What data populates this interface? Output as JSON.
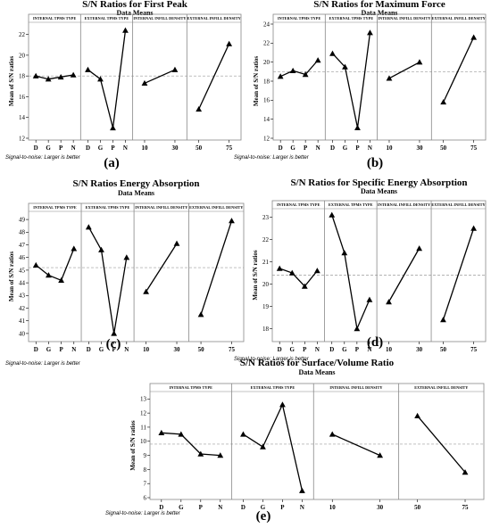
{
  "chart_data": [
    {
      "type": "line",
      "title": "S/N Ratios for First Peak",
      "subtitle": "Data Means",
      "ylabel": "Mean of S/N ratios",
      "ylim": [
        12,
        23
      ],
      "yticks": [
        12,
        14,
        16,
        18,
        20,
        22
      ],
      "reference_line": 18,
      "footnote": "Signal-to-noise: Larger is better",
      "caption": "(a)",
      "panels": [
        {
          "header": "INTERNAL TPMS TYPE",
          "categories": [
            "D",
            "G",
            "P",
            "N"
          ],
          "values": [
            18.0,
            17.7,
            17.9,
            18.1
          ]
        },
        {
          "header": "EXTERNAL TPMS TYPE",
          "categories": [
            "D",
            "G",
            "P",
            "N"
          ],
          "values": [
            18.6,
            17.7,
            13.0,
            22.4
          ]
        },
        {
          "header": "INTERNAL INFILL DENSITY",
          "categories": [
            "10",
            "30"
          ],
          "values": [
            17.3,
            18.6
          ]
        },
        {
          "header": "EXTERNAL INFILL DENSITY",
          "categories": [
            "50",
            "75"
          ],
          "values": [
            14.8,
            21.1
          ]
        }
      ]
    },
    {
      "type": "line",
      "title": "S/N Ratios for Maximum Force",
      "subtitle": "Data Means",
      "ylabel": "Mean of S/N ratios",
      "ylim": [
        12,
        24
      ],
      "yticks": [
        12,
        14,
        16,
        18,
        20,
        22,
        24
      ],
      "reference_line": 19,
      "footnote": "Signal-to-noise: Larger is better",
      "caption": "(b)",
      "panels": [
        {
          "header": "INTERNAL TPMS TYPE",
          "categories": [
            "D",
            "G",
            "P",
            "N"
          ],
          "values": [
            18.5,
            19.1,
            18.7,
            20.2
          ]
        },
        {
          "header": "EXTERNAL TPMS TYPE",
          "categories": [
            "D",
            "G",
            "P",
            "N"
          ],
          "values": [
            20.9,
            19.5,
            13.1,
            23.1
          ]
        },
        {
          "header": "INTERNAL INFILL DENSITY",
          "categories": [
            "10",
            "30"
          ],
          "values": [
            18.3,
            20.0
          ]
        },
        {
          "header": "EXTERNAL INFILL DENSITY",
          "categories": [
            "50",
            "75"
          ],
          "values": [
            15.8,
            22.6
          ]
        }
      ]
    },
    {
      "type": "line",
      "title": "S/N Ratios Energy Absorption",
      "subtitle": "Data Means",
      "ylabel": "Mean of S/N ratios",
      "ylim": [
        39.5,
        49.5
      ],
      "yticks": [
        40,
        41,
        42,
        43,
        44,
        45,
        46,
        47,
        48,
        49
      ],
      "reference_line": 45.2,
      "footnote": "Signal-to-noise: Larger is better",
      "caption": "(c)",
      "panels": [
        {
          "header": "INTERNAL TPMS TYPE",
          "categories": [
            "D",
            "G",
            "P",
            "N"
          ],
          "values": [
            45.4,
            44.6,
            44.2,
            46.7
          ]
        },
        {
          "header": "EXTERNAL TPMS TYPE",
          "categories": [
            "D",
            "G",
            "P",
            "N"
          ],
          "values": [
            48.4,
            46.6,
            40.0,
            46.0
          ]
        },
        {
          "header": "INTERNAL INFILL DENSITY",
          "categories": [
            "10",
            "30"
          ],
          "values": [
            43.3,
            47.1
          ]
        },
        {
          "header": "EXTERNAL INFILL DENSITY",
          "categories": [
            "50",
            "75"
          ],
          "values": [
            41.5,
            48.9
          ]
        }
      ]
    },
    {
      "type": "line",
      "title": "S/N Ratios for Specific Energy Absorption",
      "subtitle": "Data Means",
      "ylabel": "Mean of S/N ratios",
      "ylim": [
        17.5,
        23.3
      ],
      "yticks": [
        18,
        19,
        20,
        21,
        22,
        23
      ],
      "reference_line": 20.4,
      "footnote": "Signal-to-noise: Larger is better",
      "caption": "(d)",
      "panels": [
        {
          "header": "INTERNAL TPMS TYPE",
          "categories": [
            "D",
            "G",
            "P",
            "N"
          ],
          "values": [
            20.7,
            20.5,
            19.9,
            20.6
          ]
        },
        {
          "header": "EXTERNAL TPMS TYPE",
          "categories": [
            "D",
            "G",
            "P",
            "N"
          ],
          "values": [
            23.1,
            21.4,
            18.0,
            19.3
          ]
        },
        {
          "header": "INTERNAL INFILL DENSITY",
          "categories": [
            "10",
            "30"
          ],
          "values": [
            19.2,
            21.6
          ]
        },
        {
          "header": "EXTERNAL INFILL DENSITY",
          "categories": [
            "50",
            "75"
          ],
          "values": [
            18.4,
            22.5
          ]
        }
      ]
    },
    {
      "type": "line",
      "title": "S/N Ratios for Surface/Volume Ratio",
      "subtitle": "Data Means",
      "ylabel": "Mean of S/N ratios",
      "ylim": [
        6,
        13.4
      ],
      "yticks": [
        6,
        7,
        8,
        9,
        10,
        11,
        12,
        13
      ],
      "reference_line": 9.8,
      "footnote": "Signal-to-noise: Larger is better",
      "caption": "(e)",
      "panels": [
        {
          "header": "INTERNAL TPMS TYPE",
          "categories": [
            "D",
            "G",
            "P",
            "N"
          ],
          "values": [
            10.6,
            10.5,
            9.1,
            9.0
          ]
        },
        {
          "header": "EXTERNAL TPMS TYPE",
          "categories": [
            "D",
            "G",
            "P",
            "N"
          ],
          "values": [
            10.5,
            9.6,
            12.6,
            6.5
          ]
        },
        {
          "header": "INTERNAL INFILL DENSITY",
          "categories": [
            "10",
            "30"
          ],
          "values": [
            10.5,
            9.0
          ]
        },
        {
          "header": "EXTERNAL INFILL DENSITY",
          "categories": [
            "50",
            "75"
          ],
          "values": [
            11.8,
            7.8
          ]
        }
      ]
    }
  ],
  "colors": {
    "line": "#000000",
    "frame": "#888888",
    "reference": "#9a9a9a",
    "header_fill": "#ffffff"
  }
}
